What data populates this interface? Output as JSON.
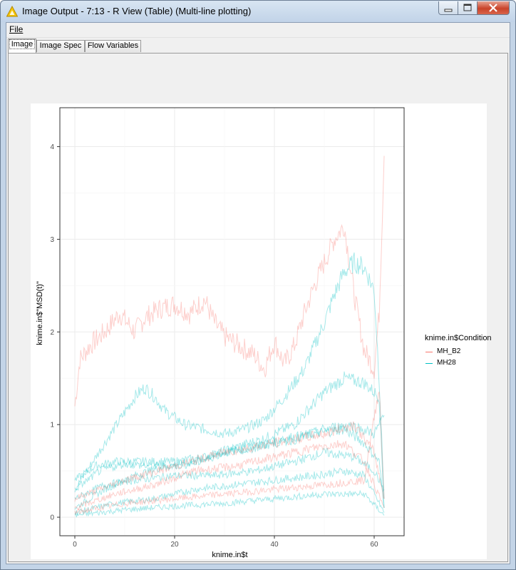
{
  "window": {
    "title": "Image Output - 7:13 - R View (Table) (Multi-line plotting)",
    "icon": "knime-warning-triangle-icon"
  },
  "menu": {
    "file_label": "File"
  },
  "tabs": [
    {
      "label": "Image",
      "active": true
    },
    {
      "label": "Image Spec",
      "active": false
    },
    {
      "label": "Flow Variables",
      "active": false
    }
  ],
  "chart_data": {
    "type": "line",
    "xlabel": "knime.in$t",
    "ylabel": "knime.in$\"MSD(t)\"",
    "xlim": [
      -3,
      66
    ],
    "ylim": [
      -0.2,
      4.42
    ],
    "x_ticks": [
      0,
      20,
      40,
      60
    ],
    "y_ticks": [
      0,
      1,
      2,
      3,
      4
    ],
    "grid": true,
    "legend": {
      "title": "knime.in$Condition",
      "placement": "right",
      "entries": [
        {
          "name": "MH_B2",
          "color": "#F8766D"
        },
        {
          "name": "MH28",
          "color": "#00BFC4"
        }
      ]
    },
    "series": [
      {
        "name": "MH_B2",
        "color": "#F8766D",
        "values": [
          [
            0,
            1.2
          ],
          [
            1,
            1.7
          ],
          [
            3,
            1.85
          ],
          [
            6,
            2.0
          ],
          [
            9,
            2.2
          ],
          [
            12,
            2.0
          ],
          [
            14,
            2.15
          ],
          [
            17,
            2.25
          ],
          [
            20,
            2.3
          ],
          [
            23,
            2.2
          ],
          [
            26,
            2.35
          ],
          [
            28,
            2.1
          ],
          [
            30,
            1.95
          ],
          [
            33,
            1.85
          ],
          [
            36,
            1.75
          ],
          [
            38,
            1.6
          ],
          [
            40,
            1.9
          ],
          [
            42,
            1.65
          ],
          [
            44,
            1.85
          ],
          [
            46,
            2.2
          ],
          [
            48,
            2.5
          ],
          [
            50,
            2.75
          ],
          [
            52,
            3.0
          ],
          [
            54,
            3.15
          ],
          [
            56,
            2.4
          ],
          [
            58,
            1.8
          ],
          [
            60,
            1.6
          ],
          [
            61,
            2.2
          ],
          [
            62,
            3.9
          ]
        ]
      },
      {
        "name": "MH28",
        "color": "#00BFC4",
        "values": [
          [
            0,
            0.3
          ],
          [
            3,
            0.55
          ],
          [
            6,
            0.8
          ],
          [
            9,
            1.05
          ],
          [
            12,
            1.3
          ],
          [
            14,
            1.4
          ],
          [
            16,
            1.3
          ],
          [
            18,
            1.15
          ],
          [
            22,
            1.0
          ],
          [
            26,
            0.95
          ],
          [
            30,
            0.9
          ],
          [
            34,
            0.95
          ],
          [
            38,
            1.05
          ],
          [
            42,
            1.3
          ],
          [
            46,
            1.6
          ],
          [
            48,
            1.85
          ],
          [
            50,
            2.1
          ],
          [
            52,
            2.4
          ],
          [
            54,
            2.65
          ],
          [
            56,
            2.75
          ],
          [
            58,
            2.7
          ],
          [
            60,
            2.45
          ],
          [
            61,
            1.5
          ],
          [
            62,
            0.2
          ]
        ]
      },
      {
        "name": "MH28",
        "color": "#00BFC4",
        "values": [
          [
            0,
            0.4
          ],
          [
            4,
            0.55
          ],
          [
            8,
            0.6
          ],
          [
            14,
            0.6
          ],
          [
            20,
            0.6
          ],
          [
            26,
            0.65
          ],
          [
            32,
            0.75
          ],
          [
            38,
            0.85
          ],
          [
            44,
            1.0
          ],
          [
            50,
            1.35
          ],
          [
            54,
            1.5
          ],
          [
            58,
            1.45
          ],
          [
            61,
            1.3
          ],
          [
            62,
            0.1
          ]
        ]
      },
      {
        "name": "MH28",
        "color": "#00BFC4",
        "values": [
          [
            0,
            0.1
          ],
          [
            6,
            0.3
          ],
          [
            12,
            0.45
          ],
          [
            18,
            0.55
          ],
          [
            24,
            0.6
          ],
          [
            30,
            0.7
          ],
          [
            36,
            0.75
          ],
          [
            42,
            0.85
          ],
          [
            48,
            0.9
          ],
          [
            54,
            0.95
          ],
          [
            58,
            0.8
          ],
          [
            61,
            0.6
          ],
          [
            62,
            0.1
          ]
        ]
      },
      {
        "name": "MH28",
        "color": "#00BFC4",
        "values": [
          [
            0,
            0.05
          ],
          [
            8,
            0.15
          ],
          [
            16,
            0.2
          ],
          [
            24,
            0.3
          ],
          [
            32,
            0.35
          ],
          [
            40,
            0.4
          ],
          [
            48,
            0.45
          ],
          [
            54,
            0.5
          ],
          [
            58,
            0.45
          ],
          [
            62,
            0.05
          ]
        ]
      },
      {
        "name": "MH28",
        "color": "#00BFC4",
        "values": [
          [
            0,
            0.2
          ],
          [
            6,
            0.35
          ],
          [
            12,
            0.4
          ],
          [
            20,
            0.45
          ],
          [
            28,
            0.45
          ],
          [
            36,
            0.5
          ],
          [
            44,
            0.6
          ],
          [
            50,
            0.7
          ],
          [
            56,
            0.65
          ],
          [
            60,
            0.5
          ],
          [
            62,
            0.3
          ]
        ]
      },
      {
        "name": "MH28",
        "color": "#00BFC4",
        "values": [
          [
            0,
            0.02
          ],
          [
            10,
            0.08
          ],
          [
            20,
            0.12
          ],
          [
            30,
            0.15
          ],
          [
            40,
            0.2
          ],
          [
            50,
            0.25
          ],
          [
            58,
            0.25
          ],
          [
            62,
            0.02
          ]
        ]
      },
      {
        "name": "MH28",
        "color": "#00BFC4",
        "values": [
          [
            0,
            0.3
          ],
          [
            5,
            0.5
          ],
          [
            10,
            0.58
          ],
          [
            15,
            0.55
          ],
          [
            20,
            0.55
          ],
          [
            25,
            0.6
          ],
          [
            30,
            0.7
          ],
          [
            35,
            0.75
          ],
          [
            40,
            0.8
          ],
          [
            45,
            0.85
          ],
          [
            50,
            0.95
          ],
          [
            55,
            1.0
          ],
          [
            60,
            0.9
          ],
          [
            62,
            1.1
          ]
        ]
      },
      {
        "name": "MH_B2",
        "color": "#F8766D",
        "values": [
          [
            0,
            0.1
          ],
          [
            8,
            0.25
          ],
          [
            16,
            0.35
          ],
          [
            24,
            0.5
          ],
          [
            32,
            0.55
          ],
          [
            40,
            0.65
          ],
          [
            48,
            0.75
          ],
          [
            54,
            0.8
          ],
          [
            58,
            0.6
          ],
          [
            62,
            0.1
          ]
        ]
      },
      {
        "name": "MH_B2",
        "color": "#F8766D",
        "values": [
          [
            0,
            0.05
          ],
          [
            10,
            0.15
          ],
          [
            20,
            0.2
          ],
          [
            30,
            0.25
          ],
          [
            40,
            0.3
          ],
          [
            50,
            0.35
          ],
          [
            58,
            0.4
          ],
          [
            61,
            1.4
          ],
          [
            62,
            0.2
          ]
        ]
      },
      {
        "name": "MH_B2",
        "color": "#F8766D",
        "values": [
          [
            0,
            0.2
          ],
          [
            10,
            0.4
          ],
          [
            20,
            0.55
          ],
          [
            30,
            0.7
          ],
          [
            40,
            0.8
          ],
          [
            50,
            0.9
          ],
          [
            56,
            1.0
          ],
          [
            60,
            0.7
          ],
          [
            62,
            0.2
          ]
        ]
      }
    ]
  }
}
